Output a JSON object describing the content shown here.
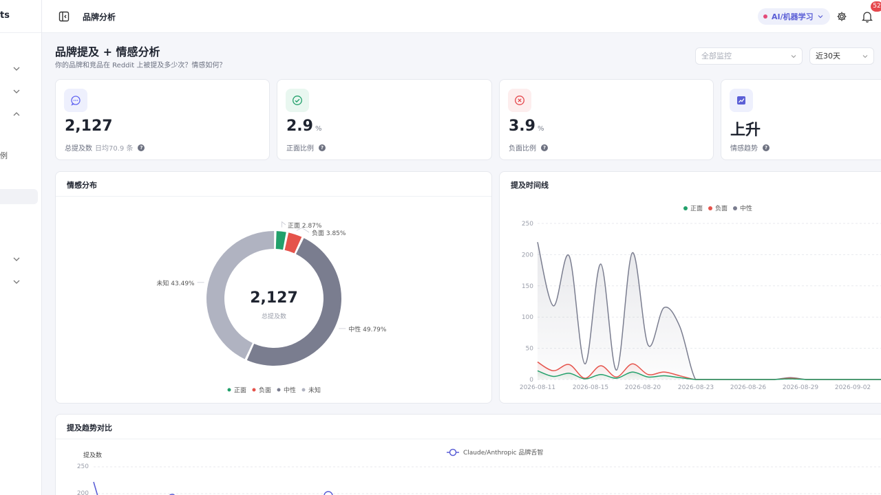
{
  "sidebar": {
    "logo_fragment": "ts",
    "partial_item_text": "例"
  },
  "topbar": {
    "title": "品牌分析",
    "ai_badge": "AI/机器学习",
    "notification_count": "52"
  },
  "header": {
    "title": "品牌提及 + 情感分析",
    "subtitle": "你的品牌和竞品在 Reddit 上被提及多少次？情感如何？",
    "monitor_placeholder": "全部监控",
    "range_value": "近30天"
  },
  "stats": [
    {
      "value": "2,127",
      "unit": "",
      "label": "总提及数",
      "sub": "日均70.9 条",
      "icon": "message-icon",
      "color": "#6366f1"
    },
    {
      "value": "2.9",
      "unit": "%",
      "label": "正面比例",
      "sub": "",
      "icon": "check-circle-icon",
      "color": "#22a06b"
    },
    {
      "value": "3.9",
      "unit": "%",
      "label": "负面比例",
      "sub": "",
      "icon": "x-circle-icon",
      "color": "#e5484d"
    },
    {
      "value": "上升",
      "unit": "",
      "label": "情感趋势",
      "sub": "",
      "icon": "trend-up-icon",
      "color": "#5b5fd6"
    }
  ],
  "colors": {
    "positive": "#22a06b",
    "negative": "#e5534b",
    "neutral": "#7a7d8f",
    "unknown": "#b0b3c1",
    "accent": "#5b5fd6"
  },
  "donut_panel": {
    "title": "情感分布",
    "center_value": "2,127",
    "center_label": "总提及数",
    "legend": [
      "正面",
      "负面",
      "中性",
      "未知"
    ]
  },
  "timeline_panel": {
    "title": "提及时间线",
    "legend": [
      "正面",
      "负面",
      "中性"
    ]
  },
  "trend_panel": {
    "title": "提及趋势对比",
    "ylabel": "提及数",
    "legend": "Claude/Anthropic 品牌舌智"
  },
  "chart_data": [
    {
      "type": "pie",
      "title": "情感分布",
      "labels": [
        "正面",
        "负面",
        "中性",
        "未知"
      ],
      "values": [
        2.87,
        3.85,
        49.79,
        43.49
      ],
      "slice_labels": [
        "正面 2.87%",
        "负面 3.85%",
        "中性 49.79%",
        "未知 43.49%"
      ],
      "center": "2,127"
    },
    {
      "type": "area",
      "title": "提及时间线",
      "x_ticks": [
        "2026-08-11",
        "2026-08-15",
        "2026-08-20",
        "2026-08-23",
        "2026-08-26",
        "2026-08-29",
        "2026-09-02"
      ],
      "y_ticks": [
        "250",
        "200",
        "150",
        "100",
        "50",
        "0"
      ],
      "ylim": [
        0,
        250
      ],
      "x": [
        "2026-08-11",
        "2026-08-12",
        "2026-08-13",
        "2026-08-14",
        "2026-08-15",
        "2026-08-16",
        "2026-08-17",
        "2026-08-18",
        "2026-08-19",
        "2026-08-20",
        "2026-08-21",
        "2026-08-22",
        "2026-08-23",
        "2026-08-24",
        "2026-08-25",
        "2026-08-26",
        "2026-08-27",
        "2026-08-28",
        "2026-08-29",
        "2026-08-30",
        "2026-08-31",
        "2026-09-01",
        "2026-09-02"
      ],
      "series": [
        {
          "name": "中性",
          "values": [
            220,
            118,
            198,
            25,
            185,
            15,
            203,
            55,
            115,
            85,
            0,
            0,
            0,
            0,
            0,
            0,
            3,
            0,
            0,
            0,
            0,
            0,
            0
          ]
        },
        {
          "name": "负面",
          "values": [
            28,
            14,
            24,
            2,
            22,
            4,
            25,
            8,
            12,
            6,
            0,
            0,
            0,
            0,
            0,
            0,
            2,
            0,
            0,
            0,
            0,
            0,
            0
          ]
        },
        {
          "name": "正面",
          "values": [
            14,
            5,
            10,
            1,
            8,
            2,
            12,
            4,
            6,
            3,
            0,
            0,
            0,
            0,
            0,
            0,
            1,
            0,
            0,
            0,
            0,
            0,
            0
          ]
        }
      ],
      "legend": [
        "正面",
        "负面",
        "中性"
      ]
    },
    {
      "type": "line",
      "title": "提及趋势对比",
      "ylabel": "提及数",
      "y_ticks": [
        "250",
        "200"
      ],
      "series": [
        {
          "name": "Claude/Anthropic 品牌舌智"
        }
      ]
    }
  ]
}
